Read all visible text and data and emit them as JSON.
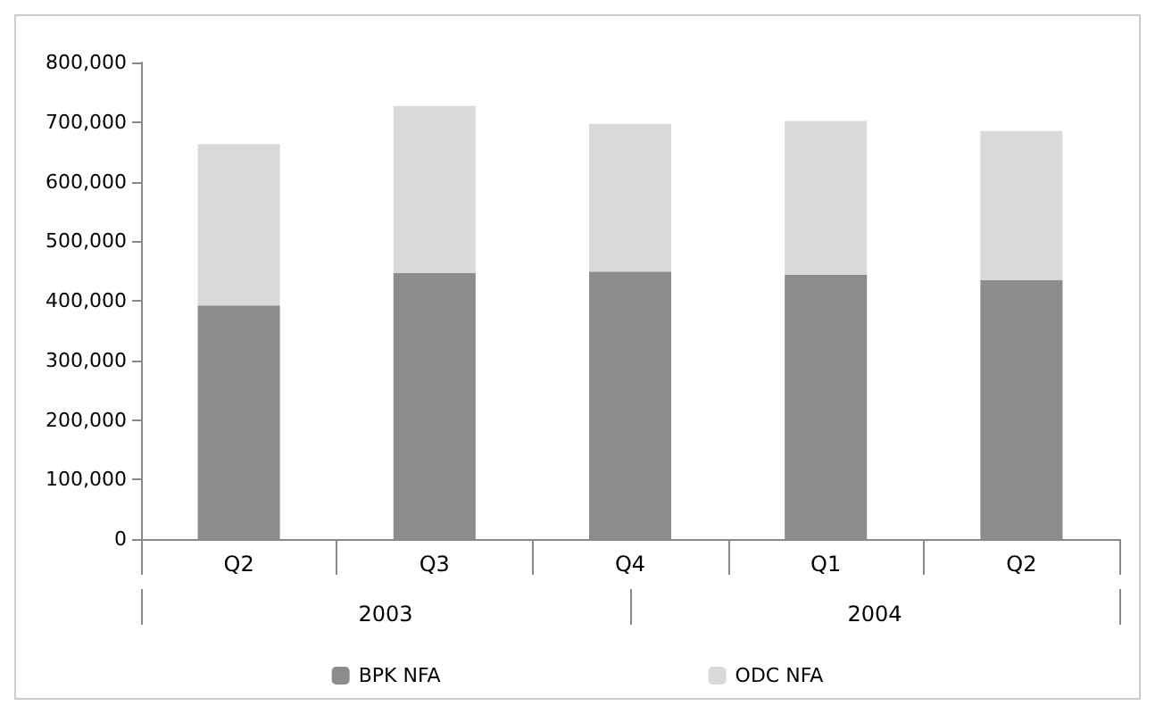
{
  "chart_data": {
    "type": "bar",
    "stacked": true,
    "categories": [
      "Q2",
      "Q3",
      "Q4",
      "Q1",
      "Q2"
    ],
    "series": [
      {
        "name": "BPK NFA",
        "color": "#8c8c8c",
        "values": [
          392000,
          447000,
          449000,
          444000,
          435000
        ]
      },
      {
        "name": "ODC NFA",
        "color": "#d9d9d9",
        "values": [
          271000,
          280000,
          248000,
          258000,
          250000
        ]
      }
    ],
    "annotations": [
      "2003",
      "2004"
    ],
    "ylim": [
      0,
      800000
    ],
    "yticks": [
      0,
      {
        "value": 100000,
        "label": "100,000"
      },
      {
        "value": 200000,
        "label": "200,000"
      },
      {
        "value": 300000,
        "label": "300,000"
      },
      {
        "value": 400000,
        "label": "400,000"
      },
      {
        "value": 500000,
        "label": "500,000"
      },
      {
        "value": 600000,
        "label": "600,000"
      },
      {
        "value": 700000,
        "label": "700,000"
      },
      {
        "value": 800000,
        "label": "800,000"
      }
    ],
    "grid": false,
    "legend": "bottom"
  }
}
